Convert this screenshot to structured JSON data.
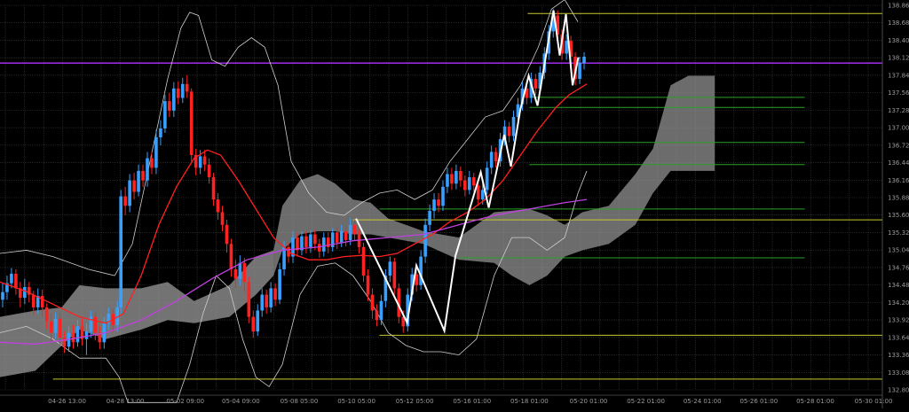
{
  "chart_data": {
    "type": "candlestick",
    "title": "",
    "xlabel": "",
    "ylabel": "",
    "ylim": [
      132.8,
      138.86
    ],
    "grid": true,
    "colors": {
      "background": "#000000",
      "up_candle": "#3aa0ff",
      "down_candle": "#ff2222",
      "ma_fast": "#ff2020",
      "ma_slow": "#c040e0",
      "bollinger": "#cfcfcf",
      "cloud": "#a8a8a8",
      "zigzag": "#ffffff",
      "yellow_levels": "#c8c832",
      "green_levels": "#2aa02a",
      "purple_level": "#b030ff"
    },
    "y_ticks": [
      "138.86",
      "138.68",
      "138.40",
      "138.12",
      "137.84",
      "137.56",
      "137.28",
      "137.00",
      "136.72",
      "136.44",
      "136.16",
      "135.88",
      "135.60",
      "135.32",
      "135.04",
      "134.76",
      "134.48",
      "134.20",
      "133.92",
      "133.64",
      "133.36",
      "133.08",
      "132.80"
    ],
    "x_ticks": [
      "04-26 13:00",
      "04-28 13:00",
      "05-02 09:00",
      "05-04 09:00",
      "05-08 05:00",
      "05-10 05:00",
      "05-12 05:00",
      "05-16 01:00",
      "05-18 01:00",
      "05-20 01:00",
      "05-22 01:00",
      "05-24 01:00",
      "05-26 01:00",
      "05-28 01:00",
      "05-30 01:00"
    ],
    "horizontal_levels": [
      {
        "color": "yellow",
        "value": 138.73
      },
      {
        "color": "purple",
        "value": 137.95
      },
      {
        "color": "green",
        "value": 137.41
      },
      {
        "color": "green",
        "value": 137.25
      },
      {
        "color": "green",
        "value": 136.7
      },
      {
        "color": "green",
        "value": 136.35
      },
      {
        "color": "green",
        "value": 135.65
      },
      {
        "color": "yellow",
        "value": 135.48
      },
      {
        "color": "green",
        "value": 134.88
      },
      {
        "color": "yellow",
        "value": 133.66
      },
      {
        "color": "yellow",
        "value": 132.97
      }
    ],
    "zigzag_points": [
      [
        133.61,
        135.5
      ],
      [
        134.76,
        133.86
      ],
      [
        134.97,
        134.76
      ],
      [
        135.6,
        133.73
      ],
      [
        135.85,
        134.91
      ],
      [
        136.42,
        136.23
      ],
      [
        136.6,
        135.67
      ],
      [
        136.95,
        136.82
      ],
      [
        137.1,
        136.32
      ],
      [
        137.31,
        137.21
      ],
      [
        137.5,
        137.75
      ],
      [
        137.7,
        137.28
      ],
      [
        137.85,
        137.9
      ],
      [
        138.06,
        138.78
      ],
      [
        138.2,
        138.07
      ],
      [
        138.34,
        138.72
      ],
      [
        138.49,
        137.6
      ],
      [
        138.62,
        138.04
      ]
    ],
    "candles": [
      {
        "x": 0.003,
        "o": 134.22,
        "c": 134.34,
        "h": 134.48,
        "l": 134.1
      },
      {
        "x": 0.008,
        "o": 134.34,
        "c": 134.48,
        "h": 134.6,
        "l": 134.22
      },
      {
        "x": 0.013,
        "o": 134.48,
        "c": 134.63,
        "h": 134.72,
        "l": 134.4
      },
      {
        "x": 0.018,
        "o": 134.63,
        "c": 134.4,
        "h": 134.7,
        "l": 134.3
      },
      {
        "x": 0.023,
        "o": 134.4,
        "c": 134.25,
        "h": 134.5,
        "l": 134.1
      },
      {
        "x": 0.028,
        "o": 134.25,
        "c": 134.42,
        "h": 134.55,
        "l": 134.15
      },
      {
        "x": 0.033,
        "o": 134.42,
        "c": 134.3,
        "h": 134.5,
        "l": 134.18
      },
      {
        "x": 0.038,
        "o": 134.3,
        "c": 134.1,
        "h": 134.36,
        "l": 133.98
      },
      {
        "x": 0.043,
        "o": 134.1,
        "c": 134.28,
        "h": 134.4,
        "l": 134.0
      },
      {
        "x": 0.048,
        "o": 134.28,
        "c": 134.1,
        "h": 134.38,
        "l": 133.96
      },
      {
        "x": 0.053,
        "o": 134.1,
        "c": 133.88,
        "h": 134.16,
        "l": 133.76
      },
      {
        "x": 0.058,
        "o": 133.88,
        "c": 133.7,
        "h": 134.0,
        "l": 133.55
      },
      {
        "x": 0.063,
        "o": 133.7,
        "c": 133.92,
        "h": 134.02,
        "l": 133.6
      },
      {
        "x": 0.068,
        "o": 133.92,
        "c": 133.62,
        "h": 134.0,
        "l": 133.5
      },
      {
        "x": 0.073,
        "o": 133.62,
        "c": 133.48,
        "h": 133.72,
        "l": 133.38
      },
      {
        "x": 0.078,
        "o": 133.48,
        "c": 133.7,
        "h": 133.8,
        "l": 133.4
      },
      {
        "x": 0.083,
        "o": 133.7,
        "c": 133.55,
        "h": 133.82,
        "l": 133.45
      },
      {
        "x": 0.088,
        "o": 133.55,
        "c": 133.8,
        "h": 133.9,
        "l": 133.48
      },
      {
        "x": 0.093,
        "o": 133.8,
        "c": 133.6,
        "h": 133.92,
        "l": 133.5
      },
      {
        "x": 0.098,
        "o": 133.6,
        "c": 133.72,
        "h": 133.85,
        "l": 133.35
      },
      {
        "x": 0.103,
        "o": 133.72,
        "c": 133.95,
        "h": 134.05,
        "l": 133.62
      },
      {
        "x": 0.108,
        "o": 133.95,
        "c": 133.7,
        "h": 134.02,
        "l": 133.58
      },
      {
        "x": 0.113,
        "o": 133.7,
        "c": 133.55,
        "h": 133.8,
        "l": 133.44
      },
      {
        "x": 0.118,
        "o": 133.55,
        "c": 133.85,
        "h": 133.95,
        "l": 133.45
      },
      {
        "x": 0.123,
        "o": 133.85,
        "c": 134.0,
        "h": 134.1,
        "l": 133.75
      },
      {
        "x": 0.128,
        "o": 134.0,
        "c": 133.82,
        "h": 134.08,
        "l": 133.7
      },
      {
        "x": 0.133,
        "o": 133.82,
        "c": 134.1,
        "h": 134.2,
        "l": 133.72
      },
      {
        "x": 0.137,
        "o": 134.1,
        "c": 135.85,
        "h": 135.95,
        "l": 134.0
      },
      {
        "x": 0.142,
        "o": 135.85,
        "c": 135.7,
        "h": 136.0,
        "l": 135.55
      },
      {
        "x": 0.147,
        "o": 135.7,
        "c": 136.1,
        "h": 136.2,
        "l": 135.6
      },
      {
        "x": 0.152,
        "o": 136.1,
        "c": 135.92,
        "h": 136.22,
        "l": 135.8
      },
      {
        "x": 0.157,
        "o": 135.92,
        "c": 136.25,
        "h": 136.35,
        "l": 135.85
      },
      {
        "x": 0.162,
        "o": 136.25,
        "c": 136.1,
        "h": 136.35,
        "l": 136.0
      },
      {
        "x": 0.167,
        "o": 136.1,
        "c": 136.45,
        "h": 136.55,
        "l": 136.0
      },
      {
        "x": 0.172,
        "o": 136.45,
        "c": 136.3,
        "h": 136.55,
        "l": 136.2
      },
      {
        "x": 0.177,
        "o": 136.3,
        "c": 136.78,
        "h": 136.9,
        "l": 136.2
      },
      {
        "x": 0.182,
        "o": 136.78,
        "c": 136.92,
        "h": 137.05,
        "l": 136.65
      },
      {
        "x": 0.187,
        "o": 136.92,
        "c": 137.35,
        "h": 137.45,
        "l": 136.85
      },
      {
        "x": 0.192,
        "o": 137.35,
        "c": 137.2,
        "h": 137.48,
        "l": 137.1
      },
      {
        "x": 0.197,
        "o": 137.2,
        "c": 137.55,
        "h": 137.65,
        "l": 137.1
      },
      {
        "x": 0.202,
        "o": 137.55,
        "c": 137.4,
        "h": 137.66,
        "l": 137.3
      },
      {
        "x": 0.207,
        "o": 137.4,
        "c": 137.62,
        "h": 137.72,
        "l": 137.32
      },
      {
        "x": 0.212,
        "o": 137.62,
        "c": 137.5,
        "h": 137.76,
        "l": 137.4
      },
      {
        "x": 0.217,
        "o": 137.5,
        "c": 136.5,
        "h": 137.55,
        "l": 136.4
      },
      {
        "x": 0.222,
        "o": 136.5,
        "c": 136.3,
        "h": 136.6,
        "l": 136.18
      },
      {
        "x": 0.227,
        "o": 136.3,
        "c": 136.48,
        "h": 136.58,
        "l": 136.2
      },
      {
        "x": 0.232,
        "o": 136.48,
        "c": 136.35,
        "h": 136.58,
        "l": 136.25
      },
      {
        "x": 0.237,
        "o": 136.35,
        "c": 136.15,
        "h": 136.45,
        "l": 136.05
      },
      {
        "x": 0.242,
        "o": 136.15,
        "c": 135.8,
        "h": 136.22,
        "l": 135.7
      },
      {
        "x": 0.247,
        "o": 135.8,
        "c": 135.6,
        "h": 135.9,
        "l": 135.48
      },
      {
        "x": 0.252,
        "o": 135.6,
        "c": 135.4,
        "h": 135.7,
        "l": 135.3
      },
      {
        "x": 0.257,
        "o": 135.4,
        "c": 135.1,
        "h": 135.48,
        "l": 134.96
      },
      {
        "x": 0.262,
        "o": 135.1,
        "c": 134.7,
        "h": 135.18,
        "l": 134.58
      },
      {
        "x": 0.267,
        "o": 134.7,
        "c": 134.55,
        "h": 134.85,
        "l": 134.4
      },
      {
        "x": 0.272,
        "o": 134.55,
        "c": 134.8,
        "h": 134.92,
        "l": 134.45
      },
      {
        "x": 0.277,
        "o": 134.8,
        "c": 134.5,
        "h": 134.88,
        "l": 134.35
      },
      {
        "x": 0.282,
        "o": 134.5,
        "c": 133.95,
        "h": 134.58,
        "l": 133.85
      },
      {
        "x": 0.287,
        "o": 133.95,
        "c": 133.72,
        "h": 134.05,
        "l": 133.62
      },
      {
        "x": 0.292,
        "o": 133.72,
        "c": 134.05,
        "h": 134.15,
        "l": 133.65
      },
      {
        "x": 0.297,
        "o": 134.05,
        "c": 134.3,
        "h": 134.4,
        "l": 133.95
      },
      {
        "x": 0.302,
        "o": 134.3,
        "c": 134.1,
        "h": 134.38,
        "l": 134.0
      },
      {
        "x": 0.307,
        "o": 134.1,
        "c": 134.4,
        "h": 134.5,
        "l": 134.02
      },
      {
        "x": 0.312,
        "o": 134.4,
        "c": 134.22,
        "h": 134.48,
        "l": 134.12
      },
      {
        "x": 0.317,
        "o": 134.22,
        "c": 134.7,
        "h": 134.8,
        "l": 134.15
      },
      {
        "x": 0.322,
        "o": 134.7,
        "c": 135.05,
        "h": 135.15,
        "l": 134.6
      },
      {
        "x": 0.327,
        "o": 135.05,
        "c": 134.9,
        "h": 135.12,
        "l": 134.8
      },
      {
        "x": 0.332,
        "o": 134.9,
        "c": 135.2,
        "h": 135.3,
        "l": 134.8
      },
      {
        "x": 0.337,
        "o": 135.2,
        "c": 135.0,
        "h": 135.28,
        "l": 134.9
      },
      {
        "x": 0.342,
        "o": 135.0,
        "c": 135.22,
        "h": 135.3,
        "l": 134.92
      },
      {
        "x": 0.347,
        "o": 135.22,
        "c": 135.05,
        "h": 135.3,
        "l": 134.95
      },
      {
        "x": 0.352,
        "o": 135.05,
        "c": 135.25,
        "h": 135.32,
        "l": 134.96
      },
      {
        "x": 0.357,
        "o": 135.25,
        "c": 135.1,
        "h": 135.32,
        "l": 135.0
      },
      {
        "x": 0.362,
        "o": 135.1,
        "c": 134.98,
        "h": 135.18,
        "l": 134.88
      },
      {
        "x": 0.367,
        "o": 134.98,
        "c": 135.2,
        "h": 135.28,
        "l": 134.9
      },
      {
        "x": 0.372,
        "o": 135.2,
        "c": 135.05,
        "h": 135.28,
        "l": 134.95
      },
      {
        "x": 0.377,
        "o": 135.05,
        "c": 135.28,
        "h": 135.35,
        "l": 134.98
      },
      {
        "x": 0.382,
        "o": 135.28,
        "c": 135.12,
        "h": 135.36,
        "l": 135.02
      },
      {
        "x": 0.387,
        "o": 135.12,
        "c": 135.3,
        "h": 135.4,
        "l": 135.05
      },
      {
        "x": 0.392,
        "o": 135.3,
        "c": 135.16,
        "h": 135.38,
        "l": 135.06
      },
      {
        "x": 0.397,
        "o": 135.16,
        "c": 135.4,
        "h": 135.5,
        "l": 135.08
      },
      {
        "x": 0.402,
        "o": 135.4,
        "c": 135.25,
        "h": 135.48,
        "l": 135.15
      },
      {
        "x": 0.407,
        "o": 135.25,
        "c": 135.05,
        "h": 135.32,
        "l": 134.95
      },
      {
        "x": 0.412,
        "o": 135.05,
        "c": 134.6,
        "h": 135.12,
        "l": 134.5
      },
      {
        "x": 0.417,
        "o": 134.6,
        "c": 134.3,
        "h": 134.7,
        "l": 134.2
      },
      {
        "x": 0.422,
        "o": 134.3,
        "c": 134.05,
        "h": 134.4,
        "l": 133.92
      },
      {
        "x": 0.427,
        "o": 134.05,
        "c": 133.9,
        "h": 134.15,
        "l": 133.8
      },
      {
        "x": 0.432,
        "o": 133.9,
        "c": 134.2,
        "h": 134.3,
        "l": 133.82
      },
      {
        "x": 0.437,
        "o": 134.2,
        "c": 134.6,
        "h": 134.7,
        "l": 134.1
      },
      {
        "x": 0.442,
        "o": 134.6,
        "c": 134.82,
        "h": 134.9,
        "l": 134.5
      },
      {
        "x": 0.447,
        "o": 134.82,
        "c": 134.4,
        "h": 134.88,
        "l": 134.3
      },
      {
        "x": 0.452,
        "o": 134.4,
        "c": 133.95,
        "h": 134.48,
        "l": 133.85
      },
      {
        "x": 0.457,
        "o": 133.95,
        "c": 133.8,
        "h": 134.05,
        "l": 133.7
      },
      {
        "x": 0.462,
        "o": 133.8,
        "c": 134.3,
        "h": 134.4,
        "l": 133.72
      },
      {
        "x": 0.467,
        "o": 134.3,
        "c": 134.62,
        "h": 134.72,
        "l": 134.2
      },
      {
        "x": 0.472,
        "o": 134.62,
        "c": 134.45,
        "h": 134.7,
        "l": 134.35
      },
      {
        "x": 0.477,
        "o": 134.45,
        "c": 134.9,
        "h": 135.0,
        "l": 134.38
      },
      {
        "x": 0.482,
        "o": 134.9,
        "c": 135.4,
        "h": 135.5,
        "l": 134.8
      },
      {
        "x": 0.487,
        "o": 135.4,
        "c": 135.62,
        "h": 135.72,
        "l": 135.3
      },
      {
        "x": 0.492,
        "o": 135.62,
        "c": 135.8,
        "h": 135.9,
        "l": 135.5
      },
      {
        "x": 0.497,
        "o": 135.8,
        "c": 135.7,
        "h": 135.9,
        "l": 135.6
      },
      {
        "x": 0.502,
        "o": 135.7,
        "c": 136.0,
        "h": 136.1,
        "l": 135.62
      },
      {
        "x": 0.507,
        "o": 136.0,
        "c": 136.2,
        "h": 136.3,
        "l": 135.9
      },
      {
        "x": 0.512,
        "o": 136.2,
        "c": 136.05,
        "h": 136.3,
        "l": 135.95
      },
      {
        "x": 0.517,
        "o": 136.05,
        "c": 136.25,
        "h": 136.35,
        "l": 135.96
      },
      {
        "x": 0.522,
        "o": 136.25,
        "c": 136.1,
        "h": 136.32,
        "l": 136.0
      },
      {
        "x": 0.527,
        "o": 136.1,
        "c": 135.95,
        "h": 136.18,
        "l": 135.85
      },
      {
        "x": 0.532,
        "o": 135.95,
        "c": 136.15,
        "h": 136.25,
        "l": 135.88
      },
      {
        "x": 0.537,
        "o": 136.15,
        "c": 136.02,
        "h": 136.22,
        "l": 135.92
      },
      {
        "x": 0.542,
        "o": 136.02,
        "c": 135.8,
        "h": 136.08,
        "l": 135.7
      },
      {
        "x": 0.547,
        "o": 135.8,
        "c": 135.95,
        "h": 136.05,
        "l": 135.72
      },
      {
        "x": 0.552,
        "o": 135.95,
        "c": 136.3,
        "h": 136.4,
        "l": 135.88
      },
      {
        "x": 0.557,
        "o": 136.3,
        "c": 136.55,
        "h": 136.65,
        "l": 136.2
      },
      {
        "x": 0.562,
        "o": 136.55,
        "c": 136.4,
        "h": 136.62,
        "l": 136.3
      },
      {
        "x": 0.567,
        "o": 136.4,
        "c": 136.75,
        "h": 136.85,
        "l": 136.32
      },
      {
        "x": 0.572,
        "o": 136.75,
        "c": 136.95,
        "h": 137.05,
        "l": 136.65
      },
      {
        "x": 0.577,
        "o": 136.95,
        "c": 136.8,
        "h": 137.02,
        "l": 136.7
      },
      {
        "x": 0.582,
        "o": 136.8,
        "c": 137.1,
        "h": 137.2,
        "l": 136.72
      },
      {
        "x": 0.587,
        "o": 137.1,
        "c": 137.3,
        "h": 137.4,
        "l": 137.0
      },
      {
        "x": 0.592,
        "o": 137.3,
        "c": 137.55,
        "h": 137.65,
        "l": 137.2
      },
      {
        "x": 0.597,
        "o": 137.55,
        "c": 137.4,
        "h": 137.62,
        "l": 137.3
      },
      {
        "x": 0.602,
        "o": 137.4,
        "c": 137.7,
        "h": 137.8,
        "l": 137.32
      },
      {
        "x": 0.607,
        "o": 137.7,
        "c": 137.55,
        "h": 137.78,
        "l": 137.45
      },
      {
        "x": 0.612,
        "o": 137.55,
        "c": 137.8,
        "h": 137.9,
        "l": 137.48
      },
      {
        "x": 0.617,
        "o": 137.8,
        "c": 138.1,
        "h": 138.2,
        "l": 137.7
      },
      {
        "x": 0.622,
        "o": 138.1,
        "c": 138.45,
        "h": 138.55,
        "l": 138.0
      },
      {
        "x": 0.627,
        "o": 138.45,
        "c": 138.7,
        "h": 138.8,
        "l": 138.35
      },
      {
        "x": 0.632,
        "o": 138.7,
        "c": 138.4,
        "h": 138.78,
        "l": 138.3
      },
      {
        "x": 0.637,
        "o": 138.4,
        "c": 138.1,
        "h": 138.48,
        "l": 138.0
      },
      {
        "x": 0.642,
        "o": 138.1,
        "c": 138.3,
        "h": 138.4,
        "l": 138.0
      },
      {
        "x": 0.647,
        "o": 138.3,
        "c": 138.05,
        "h": 138.38,
        "l": 137.95
      },
      {
        "x": 0.652,
        "o": 138.05,
        "c": 137.7,
        "h": 138.12,
        "l": 137.6
      },
      {
        "x": 0.657,
        "o": 137.7,
        "c": 137.95,
        "h": 138.05,
        "l": 137.62
      },
      {
        "x": 0.662,
        "o": 137.95,
        "c": 138.05,
        "h": 138.12,
        "l": 137.85
      }
    ]
  }
}
